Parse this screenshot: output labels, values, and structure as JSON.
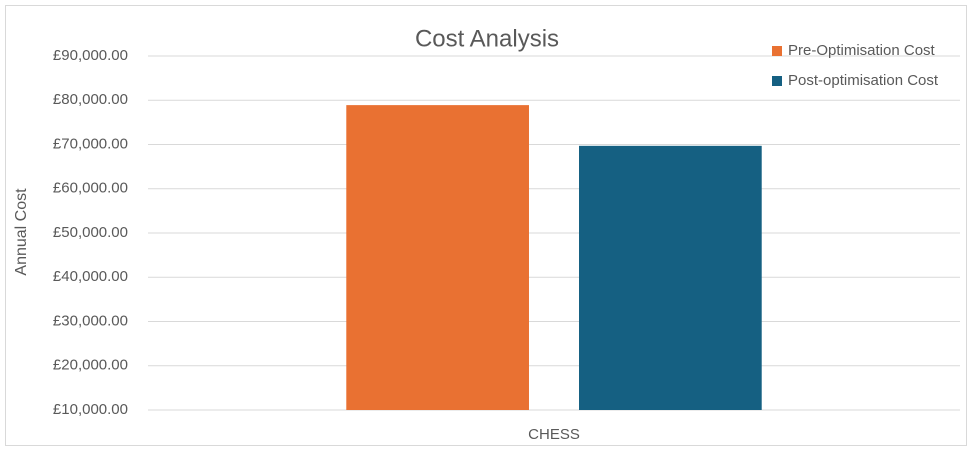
{
  "chart_data": {
    "type": "bar",
    "title": "Cost Analysis",
    "y_label": "Annual Cost",
    "categories": [
      "CHESS"
    ],
    "series": [
      {
        "name": "Pre-Optimisation Cost",
        "color": "#e97132",
        "values": [
          78900
        ]
      },
      {
        "name": "Post-optimisation Cost",
        "color": "#156082",
        "values": [
          69700
        ]
      }
    ],
    "ylim": [
      10000,
      90000
    ],
    "yticks": [
      {
        "value": 10000,
        "label": "£10,000.00"
      },
      {
        "value": 20000,
        "label": "£20,000.00"
      },
      {
        "value": 30000,
        "label": "£30,000.00"
      },
      {
        "value": 40000,
        "label": "£40,000.00"
      },
      {
        "value": 50000,
        "label": "£50,000.00"
      },
      {
        "value": 60000,
        "label": "£60,000.00"
      },
      {
        "value": 70000,
        "label": "£70,000.00"
      },
      {
        "value": 80000,
        "label": "£80,000.00"
      },
      {
        "value": 90000,
        "label": "£90,000.00"
      }
    ],
    "grid": true,
    "legend": "top-right"
  }
}
